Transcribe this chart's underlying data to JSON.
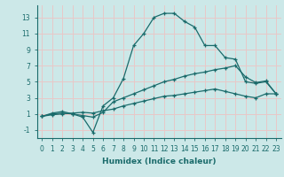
{
  "xlabel": "Humidex (Indice chaleur)",
  "xlim": [
    -0.5,
    23.5
  ],
  "ylim": [
    -2.0,
    14.5
  ],
  "yticks": [
    -1,
    1,
    3,
    5,
    7,
    9,
    11,
    13
  ],
  "xticks": [
    0,
    1,
    2,
    3,
    4,
    5,
    6,
    7,
    8,
    9,
    10,
    11,
    12,
    13,
    14,
    15,
    16,
    17,
    18,
    19,
    20,
    21,
    22,
    23
  ],
  "bg_color": "#cce8e8",
  "grid_color": "#e8c8c8",
  "line_color": "#1a6b6b",
  "lines": [
    {
      "x": [
        0,
        1,
        2,
        3,
        4,
        5,
        6,
        7,
        8,
        9,
        10,
        11,
        12,
        13,
        14,
        15,
        16,
        17,
        18,
        19,
        20,
        21,
        22,
        23
      ],
      "y": [
        0.7,
        1.1,
        1.3,
        1.0,
        0.6,
        -1.3,
        2.0,
        3.0,
        5.4,
        9.5,
        11.0,
        13.0,
        13.5,
        13.5,
        12.5,
        11.8,
        9.5,
        9.5,
        8.0,
        7.8,
        5.0,
        4.8,
        5.0,
        3.5
      ]
    },
    {
      "x": [
        0,
        1,
        2,
        3,
        4,
        5,
        6,
        7,
        8,
        9,
        10,
        11,
        12,
        13,
        14,
        15,
        16,
        17,
        18,
        19,
        20,
        21,
        22,
        23
      ],
      "y": [
        0.7,
        1.0,
        1.1,
        1.0,
        0.8,
        0.6,
        1.2,
        2.5,
        3.0,
        3.5,
        4.0,
        4.5,
        5.0,
        5.3,
        5.7,
        6.0,
        6.2,
        6.5,
        6.7,
        7.0,
        5.6,
        4.9,
        5.1,
        3.5
      ]
    },
    {
      "x": [
        0,
        1,
        2,
        3,
        4,
        5,
        6,
        7,
        8,
        9,
        10,
        11,
        12,
        13,
        14,
        15,
        16,
        17,
        18,
        19,
        20,
        21,
        22,
        23
      ],
      "y": [
        0.7,
        0.9,
        1.0,
        1.1,
        1.2,
        1.1,
        1.4,
        1.6,
        2.0,
        2.3,
        2.6,
        2.9,
        3.2,
        3.3,
        3.5,
        3.7,
        3.9,
        4.1,
        3.8,
        3.5,
        3.2,
        3.0,
        3.5,
        3.5
      ]
    }
  ],
  "tick_fontsize": 5.5,
  "xlabel_fontsize": 6.5
}
